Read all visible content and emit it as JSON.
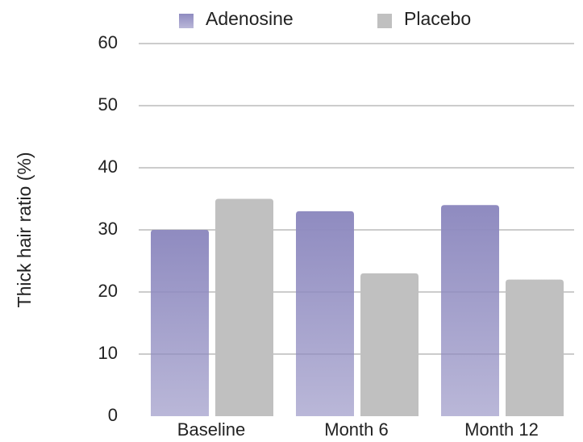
{
  "chart_data": {
    "type": "bar",
    "y_label": "Thick hair ratio (%)",
    "categories": [
      "Baseline",
      "Month 6",
      "Month 12"
    ],
    "series": [
      {
        "name": "Adenosine",
        "color": "#8f8bc0",
        "values": [
          30,
          33,
          34
        ]
      },
      {
        "name": "Placebo",
        "color": "#c0c0c0",
        "values": [
          35,
          23,
          22
        ]
      }
    ],
    "ylim": [
      0,
      60
    ],
    "yticks": [
      0,
      10,
      20,
      30,
      40,
      50,
      60
    ],
    "grid": true,
    "legend": "top"
  }
}
